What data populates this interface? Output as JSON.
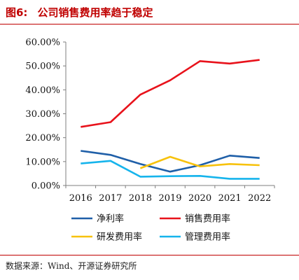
{
  "header": {
    "figure_number": "图6:",
    "title": "公司销售费用率趋于稳定"
  },
  "source": "数据来源：Wind、开源证券研究所",
  "colors": {
    "title": "#c00000",
    "rule": "#c00000"
  },
  "chart_data": {
    "type": "line",
    "title": "公司销售费用率趋于稳定",
    "xlabel": "",
    "ylabel": "",
    "categories": [
      "2016",
      "2017",
      "2018",
      "2019",
      "2020",
      "2021",
      "2022"
    ],
    "ylim": [
      0,
      60
    ],
    "yticks": [
      "0.00%",
      "10.00%",
      "20.00%",
      "30.00%",
      "40.00%",
      "50.00%",
      "60.00%"
    ],
    "grid": false,
    "legend_position": "bottom",
    "series": [
      {
        "name": "净利率",
        "color": "#1f5fa8",
        "values": [
          14.5,
          12.8,
          9.0,
          5.8,
          8.5,
          12.5,
          11.5
        ]
      },
      {
        "name": "销售费用率",
        "color": "#e8121b",
        "values": [
          24.5,
          26.5,
          38.0,
          44.0,
          52.0,
          51.0,
          52.5
        ]
      },
      {
        "name": "研发费用率",
        "color": "#f7c20d",
        "values": [
          null,
          null,
          7.2,
          12.0,
          8.0,
          9.0,
          8.5
        ]
      },
      {
        "name": "管理费用率",
        "color": "#16b4ec",
        "values": [
          9.2,
          10.3,
          3.7,
          3.9,
          4.0,
          2.8,
          2.8
        ]
      }
    ]
  }
}
